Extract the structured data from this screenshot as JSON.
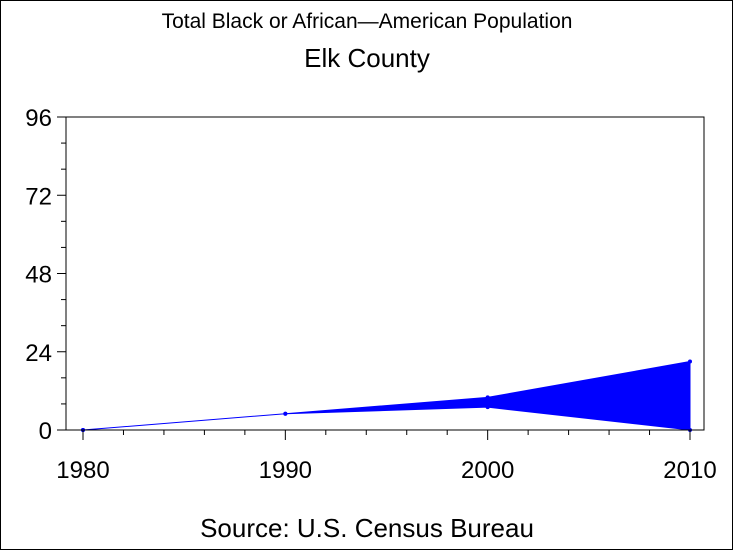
{
  "chart_data": {
    "type": "area",
    "title": "Total Black or African—American Population",
    "subtitle": "Elk County",
    "source": "Source: U.S. Census Bureau",
    "x": [
      1980,
      1990,
      2000,
      2010
    ],
    "xlim": [
      1980,
      2010
    ],
    "ylim": [
      0,
      96
    ],
    "y_ticks": [
      0,
      24,
      48,
      72,
      96
    ],
    "x_ticks": [
      1980,
      1990,
      2000,
      2010
    ],
    "series": [
      {
        "values": [
          0,
          5,
          10,
          21
        ]
      },
      {
        "values": [
          0,
          5,
          7,
          0
        ]
      }
    ],
    "fill_color": "#0000ff",
    "grid": false
  }
}
